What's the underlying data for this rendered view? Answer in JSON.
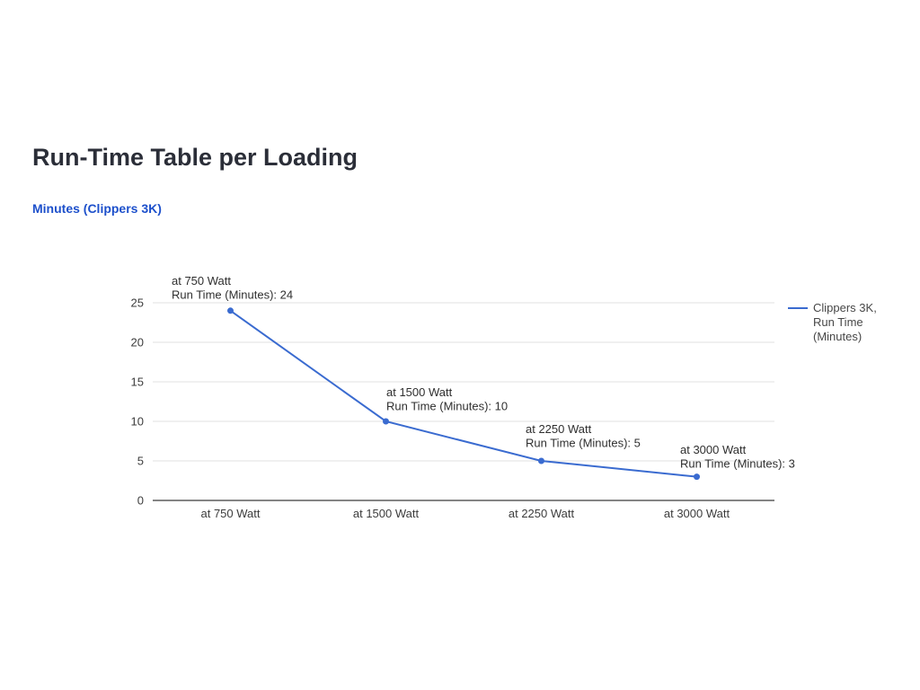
{
  "page": {
    "title": "Run-Time Table per Loading",
    "subtitle": "Minutes (Clippers 3K)"
  },
  "chart_data": {
    "type": "line",
    "title": "Run-Time Table per Loading",
    "subtitle": "Minutes (Clippers 3K)",
    "categories": [
      "at 750 Watt",
      "at 1500 Watt",
      "at 2250 Watt",
      "at 3000 Watt"
    ],
    "series": [
      {
        "name": "Clippers 3K, Run Time (Minutes)",
        "values": [
          24,
          10,
          5,
          3
        ]
      }
    ],
    "ylim": [
      0,
      25
    ],
    "yticks": [
      0,
      5,
      10,
      15,
      20,
      25
    ],
    "grid": true,
    "legend_position": "right",
    "legend_lines": [
      "Clippers 3K,",
      "Run Time",
      "(Minutes)"
    ],
    "annotations": [
      {
        "line1": "at 750 Watt",
        "line2": "Run Time (Minutes): 24"
      },
      {
        "line1": "at 1500 Watt",
        "line2": "Run Time (Minutes): 10"
      },
      {
        "line1": "at 2250 Watt",
        "line2": "Run Time (Minutes): 5"
      },
      {
        "line1": "at 3000 Watt",
        "line2": "Run Time (Minutes): 3"
      }
    ],
    "colors": {
      "line": "#3a6bd0",
      "point": "#3a6bd0",
      "grid": "#e2e2e2",
      "axis": "#3a3a3a",
      "tick_text": "#3c3c3c",
      "annotation_text": "#2f2f2f",
      "legend_text": "#474747",
      "title_text": "#2b2e38",
      "subtitle_text": "#1d50cb"
    }
  }
}
